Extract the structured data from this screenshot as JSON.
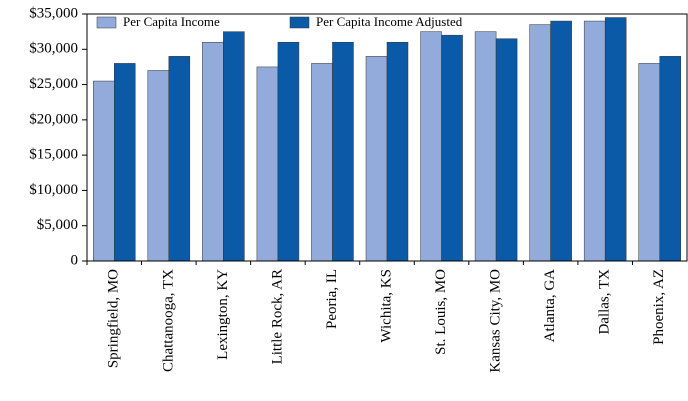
{
  "chart_data": {
    "type": "bar",
    "categories": [
      "Springfield, MO",
      "Chattanooga, TX",
      "Lexington, KY",
      "Little Rock, AR",
      "Peoria, IL",
      "Wichita, KS",
      "St. Louis, MO",
      "Kansas City, MO",
      "Atlanta, GA",
      "Dallas, TX",
      "Phoenix, AZ"
    ],
    "series": [
      {
        "name": "Per Capita Income",
        "color": "#93abda",
        "values": [
          25500,
          27000,
          31000,
          27500,
          28000,
          29000,
          32500,
          32500,
          33500,
          34000,
          28000
        ]
      },
      {
        "name": "Per Capita Income Adjusted",
        "color": "#0b5aa8",
        "values": [
          28000,
          29000,
          32500,
          31000,
          31000,
          31000,
          32000,
          31500,
          34000,
          34500,
          29000
        ]
      }
    ],
    "ylim": [
      0,
      35000
    ],
    "yticks": [
      0,
      {
        "value": 5000,
        "label": "$5,000"
      },
      {
        "value": 10000,
        "label": "$10,000"
      },
      {
        "value": 15000,
        "label": "$15,000"
      },
      {
        "value": 20000,
        "label": "$20,000"
      },
      {
        "value": 25000,
        "label": "$25,000"
      },
      {
        "value": 30000,
        "label": "$30,000"
      },
      {
        "value": 35000,
        "label": "$35,000"
      }
    ],
    "legend": "top-left"
  }
}
